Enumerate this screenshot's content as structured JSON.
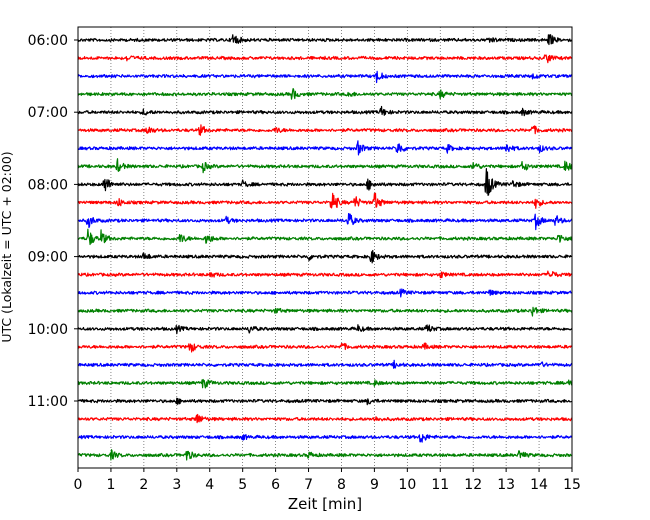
{
  "chart_data": {
    "type": "line",
    "title": "",
    "xlabel": "Zeit  [min]",
    "ylabel": "UTC (Lokalzeit = UTC + 02:00)",
    "xlim": [
      0,
      15
    ],
    "x_ticks": [
      "0",
      "1",
      "2",
      "3",
      "4",
      "5",
      "6",
      "7",
      "8",
      "9",
      "10",
      "11",
      "12",
      "13",
      "14",
      "15"
    ],
    "y_tick_labels": [
      "06:00",
      "07:00",
      "08:00",
      "09:00",
      "10:00",
      "11:00"
    ],
    "grid": "vertical dotted lines at each minute",
    "colors_cycle": [
      "#000000",
      "#ff0000",
      "#0000ff",
      "#008000"
    ],
    "traces": [
      {
        "start": "06:00",
        "color": "#000000",
        "events": [
          {
            "t": 4.7,
            "a": 1.0
          },
          {
            "t": 14.3,
            "a": 0.8
          },
          {
            "t": 12.5,
            "a": 0.4
          }
        ]
      },
      {
        "start": "06:15",
        "color": "#ff0000",
        "events": [
          {
            "t": 14.2,
            "a": 0.8
          },
          {
            "t": 1.5,
            "a": 0.4
          }
        ]
      },
      {
        "start": "06:30",
        "color": "#0000ff",
        "events": [
          {
            "t": 9.05,
            "a": 0.9
          },
          {
            "t": 13.8,
            "a": 0.4
          }
        ]
      },
      {
        "start": "06:45",
        "color": "#008000",
        "events": [
          {
            "t": 6.5,
            "a": 0.8
          },
          {
            "t": 11.0,
            "a": 0.5
          },
          {
            "t": 8.2,
            "a": 0.4
          }
        ]
      },
      {
        "start": "07:00",
        "color": "#000000",
        "events": [
          {
            "t": 9.2,
            "a": 0.7
          },
          {
            "t": 2.0,
            "a": 0.4
          },
          {
            "t": 13.5,
            "a": 0.4
          }
        ]
      },
      {
        "start": "07:15",
        "color": "#ff0000",
        "events": [
          {
            "t": 3.7,
            "a": 0.7
          },
          {
            "t": 2.1,
            "a": 0.6
          },
          {
            "t": 13.8,
            "a": 0.6
          },
          {
            "t": 6.0,
            "a": 0.4
          }
        ]
      },
      {
        "start": "07:30",
        "color": "#0000ff",
        "events": [
          {
            "t": 8.5,
            "a": 0.9
          },
          {
            "t": 9.7,
            "a": 1.0
          },
          {
            "t": 13.0,
            "a": 0.7
          },
          {
            "t": 11.2,
            "a": 0.5
          },
          {
            "t": 14.0,
            "a": 0.5
          }
        ]
      },
      {
        "start": "07:45",
        "color": "#008000",
        "events": [
          {
            "t": 1.2,
            "a": 0.8
          },
          {
            "t": 3.8,
            "a": 0.6
          },
          {
            "t": 12.0,
            "a": 0.6
          },
          {
            "t": 13.5,
            "a": 0.7
          },
          {
            "t": 14.8,
            "a": 0.8
          }
        ]
      },
      {
        "start": "08:00",
        "color": "#000000",
        "events": [
          {
            "t": 0.8,
            "a": 1.3
          },
          {
            "t": 12.4,
            "a": 2.5
          },
          {
            "t": 8.8,
            "a": 0.7
          },
          {
            "t": 5.0,
            "a": 0.4
          },
          {
            "t": 13.2,
            "a": 0.5
          }
        ]
      },
      {
        "start": "08:15",
        "color": "#ff0000",
        "events": [
          {
            "t": 7.7,
            "a": 1.8
          },
          {
            "t": 9.0,
            "a": 1.3
          },
          {
            "t": 8.4,
            "a": 0.9
          },
          {
            "t": 1.2,
            "a": 0.6
          },
          {
            "t": 13.9,
            "a": 0.7
          }
        ]
      },
      {
        "start": "08:30",
        "color": "#0000ff",
        "events": [
          {
            "t": 0.3,
            "a": 1.0
          },
          {
            "t": 8.2,
            "a": 1.2
          },
          {
            "t": 13.9,
            "a": 1.0
          },
          {
            "t": 14.5,
            "a": 0.7
          },
          {
            "t": 4.5,
            "a": 0.4
          }
        ]
      },
      {
        "start": "08:45",
        "color": "#008000",
        "events": [
          {
            "t": 0.3,
            "a": 1.3
          },
          {
            "t": 0.7,
            "a": 0.9
          },
          {
            "t": 3.1,
            "a": 0.7
          },
          {
            "t": 3.9,
            "a": 0.8
          },
          {
            "t": 14.6,
            "a": 0.7
          }
        ]
      },
      {
        "start": "09:00",
        "color": "#000000",
        "events": [
          {
            "t": 8.9,
            "a": 1.0
          },
          {
            "t": 2.0,
            "a": 0.5
          },
          {
            "t": 7.0,
            "a": 0.4
          }
        ]
      },
      {
        "start": "09:15",
        "color": "#ff0000",
        "events": [
          {
            "t": 14.3,
            "a": 0.8
          },
          {
            "t": 4.0,
            "a": 0.4
          },
          {
            "t": 11.0,
            "a": 0.4
          }
        ]
      },
      {
        "start": "09:30",
        "color": "#0000ff",
        "events": [
          {
            "t": 9.8,
            "a": 0.4
          },
          {
            "t": 12.5,
            "a": 0.3
          }
        ]
      },
      {
        "start": "09:45",
        "color": "#008000",
        "events": [
          {
            "t": 13.8,
            "a": 0.7
          },
          {
            "t": 6.0,
            "a": 0.3
          }
        ]
      },
      {
        "start": "10:00",
        "color": "#000000",
        "events": [
          {
            "t": 5.2,
            "a": 0.5
          },
          {
            "t": 10.6,
            "a": 0.6
          },
          {
            "t": 3.0,
            "a": 0.4
          },
          {
            "t": 8.5,
            "a": 0.4
          }
        ]
      },
      {
        "start": "10:15",
        "color": "#ff0000",
        "events": [
          {
            "t": 3.4,
            "a": 0.8
          },
          {
            "t": 8.0,
            "a": 0.5
          },
          {
            "t": 10.5,
            "a": 0.4
          }
        ]
      },
      {
        "start": "10:30",
        "color": "#0000ff",
        "events": [
          {
            "t": 9.6,
            "a": 0.4
          },
          {
            "t": 14.0,
            "a": 0.4
          }
        ]
      },
      {
        "start": "10:45",
        "color": "#008000",
        "events": [
          {
            "t": 3.8,
            "a": 0.8
          },
          {
            "t": 14.9,
            "a": 0.7
          },
          {
            "t": 9.0,
            "a": 0.3
          }
        ]
      },
      {
        "start": "11:00",
        "color": "#000000",
        "events": [
          {
            "t": 8.8,
            "a": 0.4
          },
          {
            "t": 3.0,
            "a": 0.3
          }
        ]
      },
      {
        "start": "11:15",
        "color": "#ff0000",
        "events": [
          {
            "t": 3.6,
            "a": 0.8
          },
          {
            "t": 9.0,
            "a": 0.3
          }
        ]
      },
      {
        "start": "11:30",
        "color": "#0000ff",
        "events": [
          {
            "t": 10.4,
            "a": 0.9
          },
          {
            "t": 5.0,
            "a": 0.3
          }
        ]
      },
      {
        "start": "11:45",
        "color": "#008000",
        "events": [
          {
            "t": 3.3,
            "a": 0.8
          },
          {
            "t": 1.0,
            "a": 0.6
          },
          {
            "t": 13.4,
            "a": 0.6
          },
          {
            "t": 7.0,
            "a": 0.4
          }
        ]
      }
    ]
  }
}
